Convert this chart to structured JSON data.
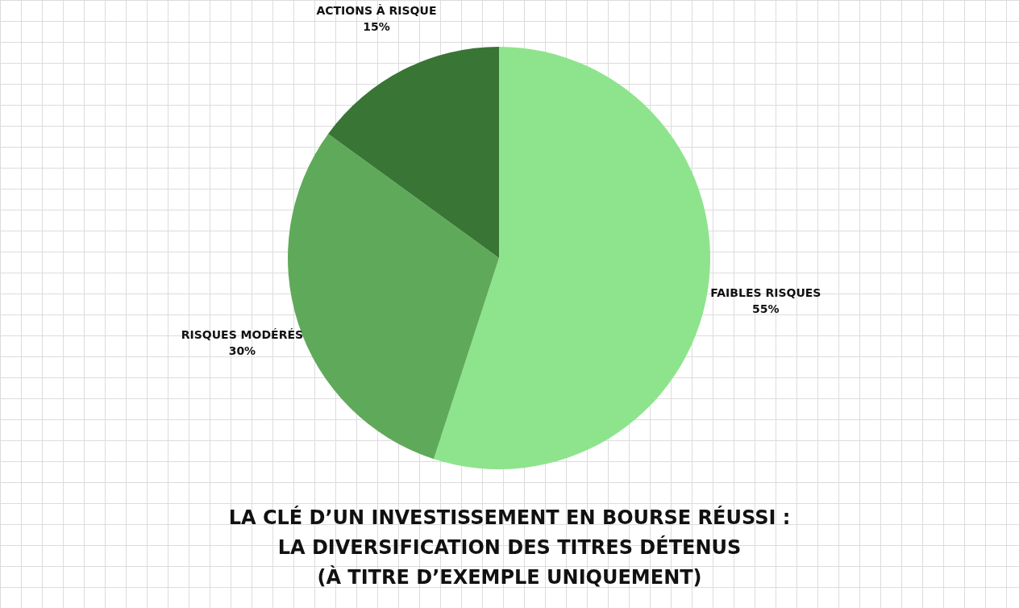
{
  "chart_data": {
    "type": "pie",
    "title": "LA CLÉ D’UN INVESTISSEMENT EN BOURSE RÉUSSI :\nLA DIVERSIFICATION DES TITRES DÉTENUS",
    "subtitle": "(À TITRE D’EXEMPLE UNIQUEMENT)",
    "categories": [
      "FAIBLES RISQUES",
      "RISQUES MODÉRÉS",
      "ACTIONS À RISQUE"
    ],
    "values": [
      55,
      30,
      15
    ],
    "colors": [
      "#8ee48c",
      "#5faa5a",
      "#397535"
    ],
    "value_labels": [
      "55%",
      "30%",
      "15%"
    ]
  }
}
